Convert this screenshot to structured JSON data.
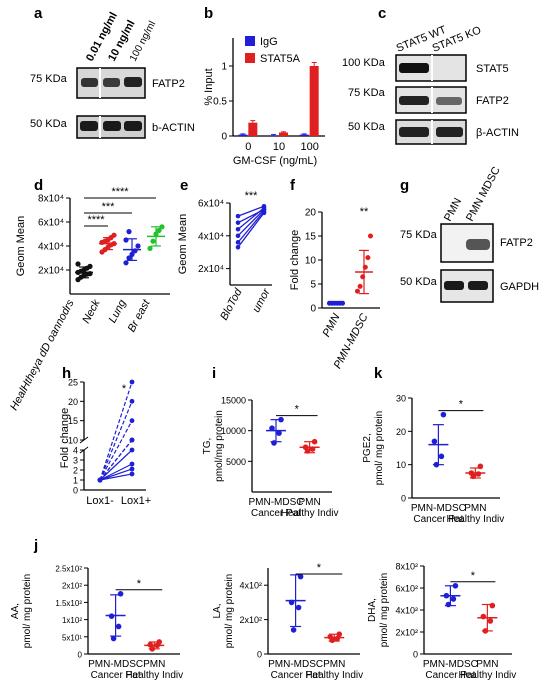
{
  "colors": {
    "blue": "#1f1fd6",
    "red": "#e02020",
    "black": "#111111",
    "green": "#21c22b"
  },
  "panel_letters": {
    "a": "a",
    "b": "b",
    "c": "c",
    "d": "d",
    "e": "e",
    "f": "f",
    "g": "g",
    "h": "h",
    "i": "i",
    "j": "j",
    "k": "k"
  },
  "blot_a": {
    "lanes": [
      "0.01 ng/ml",
      "10 ng/ml",
      "100 ng/ml"
    ],
    "markers": [
      "75 KDa",
      "50 KDa"
    ],
    "bands": [
      "FATP2",
      "b-ACTIN"
    ]
  },
  "blot_c": {
    "lanes": [
      "STAT5 WT",
      "STAT5 KO"
    ],
    "markers": [
      "100 KDa",
      "75 KDa",
      "50 KDa"
    ],
    "bands": [
      "STAT5",
      "FATP2",
      "β-ACTIN"
    ]
  },
  "blot_g": {
    "lanes": [
      "PMN",
      "PMN MDSC"
    ],
    "markers": [
      "75 KDa",
      "50 KDa"
    ],
    "bands": [
      "FATP2",
      "GAPDH"
    ]
  },
  "chart_data": [
    {
      "panel": "b",
      "type": "bar",
      "categories": [
        "0",
        "10",
        "100"
      ],
      "xlabel": "GM-CSF (ng/mL)",
      "ylabel": "% Input",
      "yticks": [
        "0",
        "0.5",
        "1"
      ],
      "ylim": [
        0,
        1.4
      ],
      "series": [
        {
          "name": "IgG",
          "color": "#1f1fd6",
          "values": [
            0.02,
            0.01,
            0.02
          ],
          "err": [
            0.01,
            0.01,
            0.01
          ]
        },
        {
          "name": "STAT5A",
          "color": "#e02020",
          "values": [
            0.19,
            0.05,
            1.0
          ],
          "err": [
            0.03,
            0.01,
            0.05
          ]
        }
      ]
    },
    {
      "panel": "d",
      "type": "scatter",
      "ylabel": "Geom Mean",
      "yticks": [
        "2x10⁴",
        "4x10⁴",
        "6x10⁴",
        "8x10⁴"
      ],
      "ylim": [
        0,
        80000
      ],
      "categories": [
        "HealHtheya dD oannodrs",
        "Neck",
        "Lung",
        "Br east"
      ],
      "significance": [
        "****",
        "***",
        "****"
      ],
      "groups": [
        {
          "color": "#111111",
          "mean": 18000,
          "sd": 4500,
          "points": [
            12000,
            14000,
            15500,
            16500,
            17000,
            18000,
            19000,
            20000,
            21500,
            23000,
            25000
          ]
        },
        {
          "color": "#e02020",
          "mean": 42000,
          "sd": 5000,
          "points": [
            35000,
            37000,
            39000,
            41000,
            42000,
            43000,
            44000,
            45000,
            47000,
            49000
          ]
        },
        {
          "color": "#1f1fd6",
          "mean": 37000,
          "sd": 9000,
          "points": [
            26000,
            30000,
            33000,
            36000,
            40000,
            45000,
            52000
          ]
        },
        {
          "color": "#21c22b",
          "mean": 48000,
          "sd": 8000,
          "points": [
            38000,
            44000,
            50000,
            53000,
            56000
          ]
        }
      ]
    },
    {
      "panel": "e",
      "type": "line",
      "ylabel": "Geom Mean",
      "yticks": [
        "2x10⁴",
        "4x10⁴",
        "6x10⁴"
      ],
      "ylim": [
        0,
        60000
      ],
      "categories": [
        "BloTod",
        "umor"
      ],
      "significance": "***",
      "pairs": [
        [
          33000,
          54000
        ],
        [
          36000,
          55000
        ],
        [
          40000,
          56000
        ],
        [
          44000,
          57000
        ],
        [
          48000,
          56000
        ],
        [
          52000,
          58000
        ]
      ]
    },
    {
      "panel": "f",
      "type": "scatter",
      "ylabel": "Fold change",
      "yticks": [
        "0",
        "5",
        "10",
        "15",
        "20"
      ],
      "ylim": [
        0,
        20
      ],
      "categories": [
        "PMN",
        "PMN-MDSC"
      ],
      "significance": "**",
      "groups": [
        {
          "color": "#1f1fd6",
          "mean": 1,
          "sd": 0,
          "points": [
            1,
            1,
            1,
            1,
            1,
            1
          ]
        },
        {
          "color": "#e02020",
          "mean": 7.5,
          "sd": 4.5,
          "points": [
            3.5,
            4.5,
            6.5,
            8.5,
            10.5,
            15
          ]
        }
      ]
    },
    {
      "panel": "h",
      "type": "line",
      "ylabel": "Fold change",
      "yticks": [
        "0",
        "1",
        "2",
        "3",
        "4",
        "10",
        "15",
        "20",
        "25"
      ],
      "categories": [
        "Lox1-",
        "Lox1+"
      ],
      "significance": "*",
      "pairs": [
        [
          1,
          1.6
        ],
        [
          1,
          2.1
        ],
        [
          1,
          2.6
        ],
        [
          1,
          4
        ],
        [
          1,
          6.5
        ],
        [
          1,
          9
        ],
        [
          1,
          15
        ],
        [
          1,
          20
        ],
        [
          1,
          25
        ]
      ]
    },
    {
      "panel": "i",
      "type": "scatter",
      "ylabel": "TG, pmol/mg protein",
      "yticks": [
        "5000",
        "10000",
        "15000"
      ],
      "ylim": [
        0,
        15000
      ],
      "categories": [
        "PMN-MDSC Cancer Pat",
        "PMN Healthy Indiv"
      ],
      "significance": "*",
      "groups": [
        {
          "color": "#1f1fd6",
          "mean": 10000,
          "sd": 1800,
          "points": [
            8000,
            9600,
            10400,
            11800
          ]
        },
        {
          "color": "#e02020",
          "mean": 7300,
          "sd": 900,
          "points": [
            6700,
            7000,
            7300,
            8200
          ]
        }
      ]
    },
    {
      "panel": "k",
      "type": "scatter",
      "ylabel": "PGE2, pmol/ mg protein",
      "yticks": [
        "0",
        "10",
        "20",
        "30"
      ],
      "ylim": [
        0,
        30
      ],
      "categories": [
        "PMN-MDSC Cancer Pat",
        "PMN Healthy Indiv"
      ],
      "significance": "*",
      "groups": [
        {
          "color": "#1f1fd6",
          "mean": 16,
          "sd": 6,
          "points": [
            10,
            12.5,
            17,
            25
          ]
        },
        {
          "color": "#e02020",
          "mean": 7.5,
          "sd": 1.5,
          "points": [
            6.5,
            7.2,
            7.5,
            9.5
          ]
        }
      ]
    },
    {
      "panel": "j1",
      "type": "scatter",
      "ylabel": "AA, pmol/ mg protein",
      "yticks": [
        "0",
        "5x10¹",
        "1x10²",
        "1.5x10²",
        "2x10²",
        "2.5x10²"
      ],
      "ylim": [
        0,
        250
      ],
      "categories": [
        "PMN-MDSC Cancer Pat",
        "PMN Healthy Indiv"
      ],
      "significance": "*",
      "groups": [
        {
          "color": "#1f1fd6",
          "mean": 112,
          "sd": 60,
          "points": [
            45,
            80,
            110,
            175
          ]
        },
        {
          "color": "#e02020",
          "mean": 25,
          "sd": 10,
          "points": [
            15,
            25,
            27,
            35
          ]
        }
      ]
    },
    {
      "panel": "j2",
      "type": "scatter",
      "ylabel": "LA, pmol/ mg protein",
      "yticks": [
        "0",
        "2x10²",
        "4x10²"
      ],
      "ylim": [
        0,
        500
      ],
      "categories": [
        "PMN-MDSC Cancer Pat",
        "PMN Healthy Indiv"
      ],
      "significance": "*",
      "groups": [
        {
          "color": "#1f1fd6",
          "mean": 310,
          "sd": 150,
          "points": [
            140,
            270,
            300,
            450
          ]
        },
        {
          "color": "#e02020",
          "mean": 95,
          "sd": 20,
          "points": [
            80,
            90,
            100,
            115
          ]
        }
      ]
    },
    {
      "panel": "j3",
      "type": "scatter",
      "ylabel": "DHA, pmol/ mg protein",
      "yticks": [
        "0",
        "2x10²",
        "4x10²",
        "6x10²",
        "8x10²"
      ],
      "ylim": [
        0,
        800
      ],
      "categories": [
        "PMN-MDSC Cancer Pat",
        "PMN Healthy Indiv"
      ],
      "significance": "*",
      "groups": [
        {
          "color": "#1f1fd6",
          "mean": 530,
          "sd": 90,
          "points": [
            450,
            500,
            530,
            620
          ]
        },
        {
          "color": "#e02020",
          "mean": 330,
          "sd": 120,
          "points": [
            210,
            300,
            340,
            440
          ]
        }
      ]
    }
  ]
}
